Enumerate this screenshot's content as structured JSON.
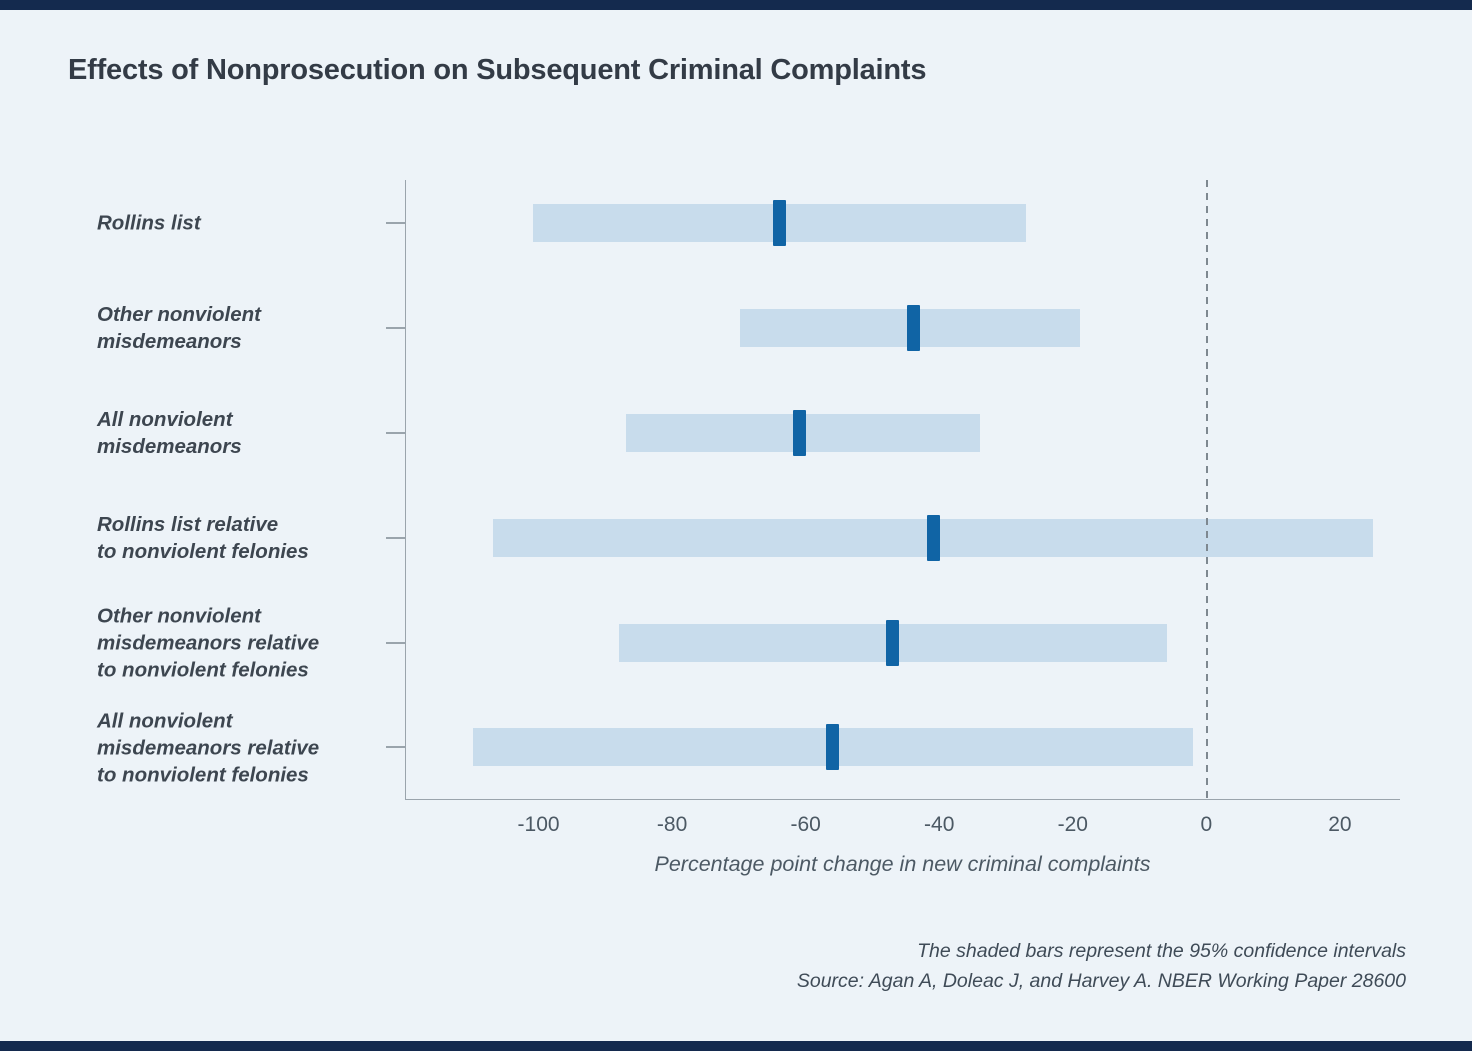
{
  "page": {
    "notes": {
      "line1": "The shaded bars represent the 95% confidence intervals",
      "line2": "Source: Agan A, Doleac J, and Harvey A. NBER Working Paper 28600"
    }
  },
  "colors": {
    "accent_navy": "#142a4e",
    "background": "#edf3f8",
    "ci_bar": "#c8dcec",
    "point_estimate": "#1064a5",
    "axis": "#9aa4ac"
  },
  "chart_data": {
    "type": "range_bar",
    "title": "Effects of Nonprosecution on Subsequent Criminal Complaints",
    "xlabel": "Percentage point change in new criminal complaints",
    "xlim": [
      -120,
      29
    ],
    "xticks": [
      -100,
      -80,
      -60,
      -40,
      -20,
      0,
      20
    ],
    "reference_line_x": 0,
    "grid": false,
    "legend": "none",
    "categories": [
      "Rollins list",
      "Other nonviolent misdemeanors",
      "All nonviolent misdemeanors",
      "Rollins list relative to nonviolent felonies",
      "Other nonviolent misdemeanors relative to nonviolent felonies",
      "All nonviolent misdemeanors relative to nonviolent felonies"
    ],
    "rows": [
      {
        "label_lines": [
          "Rollins list"
        ],
        "ci_low": -101,
        "ci_high": -27,
        "estimate": -64
      },
      {
        "label_lines": [
          "Other nonviolent",
          "misdemeanors"
        ],
        "ci_low": -70,
        "ci_high": -19,
        "estimate": -44
      },
      {
        "label_lines": [
          "All nonviolent",
          "misdemeanors"
        ],
        "ci_low": -87,
        "ci_high": -34,
        "estimate": -61
      },
      {
        "label_lines": [
          "Rollins list relative",
          "to nonviolent felonies"
        ],
        "ci_low": -107,
        "ci_high": 25,
        "estimate": -41
      },
      {
        "label_lines": [
          "Other nonviolent",
          "misdemeanors relative",
          "to nonviolent felonies"
        ],
        "ci_low": -88,
        "ci_high": -6,
        "estimate": -47
      },
      {
        "label_lines": [
          "All nonviolent",
          "misdemeanors relative",
          "to nonviolent felonies"
        ],
        "ci_low": -110,
        "ci_high": -2,
        "estimate": -56
      }
    ]
  }
}
